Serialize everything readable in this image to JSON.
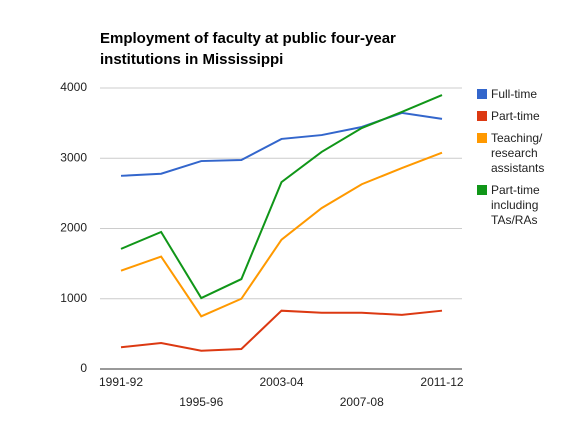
{
  "chart_data": {
    "type": "line",
    "title": "Employment of faculty at public four-year institutions in Mississippi",
    "categories": [
      "1991-92",
      null,
      "1995-96",
      null,
      "2003-04",
      null,
      "2007-08",
      null,
      "2011-12"
    ],
    "series": [
      {
        "name": "Full-time",
        "color": "#3366cc",
        "values": [
          2750,
          2780,
          2960,
          2975,
          3275,
          3330,
          3445,
          3645,
          3560
        ]
      },
      {
        "name": "Part-time",
        "color": "#dc3912",
        "values": [
          310,
          370,
          260,
          285,
          830,
          800,
          800,
          770,
          830
        ]
      },
      {
        "name": "Teaching/ research assistants",
        "color": "#ff9900",
        "values": [
          1400,
          1600,
          750,
          1000,
          1840,
          2290,
          2630,
          2860,
          3080
        ]
      },
      {
        "name": "Part-time including TAs/RAs",
        "color": "#109618",
        "values": [
          1710,
          1950,
          1010,
          1280,
          2660,
          3090,
          3430,
          3660,
          3900
        ]
      }
    ],
    "ylim": [
      0,
      4000
    ],
    "yticks": [
      0,
      1000,
      2000,
      3000,
      4000
    ],
    "grid": true,
    "legend": "right"
  }
}
